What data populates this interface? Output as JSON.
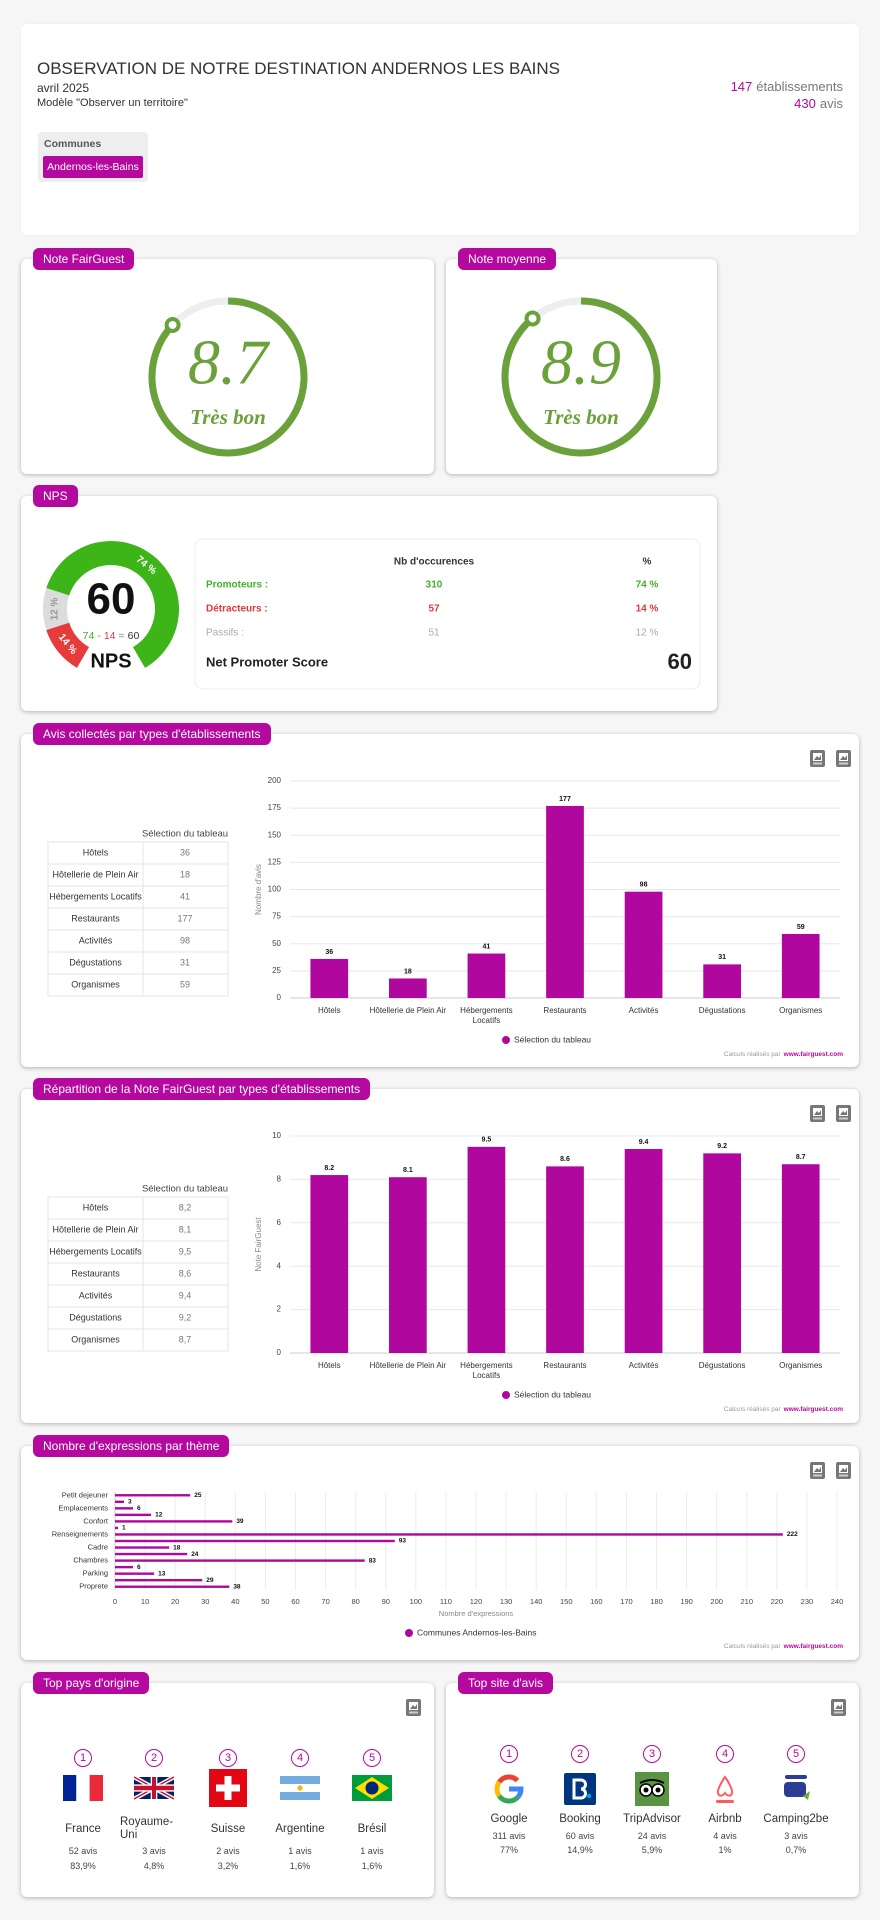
{
  "header": {
    "title": "OBSERVATION DE NOTRE DESTINATION ANDERNOS LES BAINS",
    "period": "avril 2025",
    "model": "Modèle \"Observer un territoire\"",
    "stats": [
      {
        "value": 147,
        "unit": "établissements"
      },
      {
        "value": 430,
        "unit": "avis"
      }
    ]
  },
  "filter": {
    "label": "Communes",
    "value": "Andernos-les-Bains"
  },
  "scores": [
    {
      "label": "Note FairGuest",
      "value": 8.7,
      "lim": [
        0,
        10
      ],
      "rating": "Très bon",
      "color": "#6aa13b"
    },
    {
      "label": "Note moyenne",
      "value": 8.9,
      "lim": [
        0,
        10
      ],
      "rating": "Très bon",
      "color": "#6aa13b"
    }
  ],
  "nps": {
    "label": "NPS",
    "score": 60,
    "formula": {
      "promoters": 74,
      "minus": "-",
      "detractors": 14,
      "equals": "=",
      "score": 60
    },
    "table": {
      "headers": [
        "Nb d'occurences",
        "%"
      ],
      "rows": [
        {
          "label": "Promoteurs :",
          "count": 310,
          "pct": 74,
          "pct_label": "74 %",
          "color": "#44b02a",
          "fill": "#3db418",
          "label_color": "#ffffff"
        },
        {
          "label": "Détracteurs :",
          "count": 57,
          "pct": 14,
          "pct_label": "14 %",
          "color": "#e0383d",
          "fill": "#e63b3b",
          "label_color": "#ffffff"
        },
        {
          "label": "Passifs :",
          "count": 51,
          "pct": 12,
          "pct_label": "12 %",
          "color": "#aaaaaa",
          "fill": "#dcdcdc",
          "label_color": "#999999"
        }
      ],
      "total_label": "Net Promoter Score"
    }
  },
  "chart_data": [
    {
      "type": "bar",
      "title": "Avis collectés par types d'établissements",
      "categories": [
        "Hôtels",
        "Hôtellerie de Plein Air",
        "Hébergements Locatifs",
        "Restaurants",
        "Activités",
        "Dégustations",
        "Organismes"
      ],
      "series": [
        {
          "name": "Sélection du tableau",
          "color": "#b0089f",
          "values": [
            36,
            18,
            41,
            177,
            98,
            31,
            59
          ]
        }
      ],
      "ylim": [
        0,
        200
      ],
      "yticks": [
        0,
        25,
        50,
        75,
        100,
        125,
        150,
        175,
        200
      ],
      "ylabel": "Nombre d'avis",
      "grid": true,
      "credit": "Calculs réalisés par",
      "credit_link": "www.fairguest.com"
    },
    {
      "type": "bar",
      "title": "Répartition de la Note FairGuest par types d'établissements",
      "categories": [
        "Hôtels",
        "Hôtellerie de Plein Air",
        "Hébergements Locatifs",
        "Restaurants",
        "Activités",
        "Dégustations",
        "Organismes"
      ],
      "series": [
        {
          "name": "Sélection du tableau",
          "color": "#b0089f",
          "values": [
            8.2,
            8.1,
            9.5,
            8.6,
            9.4,
            9.2,
            8.7
          ],
          "value_labels": [
            "8,2",
            "8,1",
            "9,5",
            "8,6",
            "9,4",
            "9,2",
            "8,7"
          ]
        }
      ],
      "ylim": [
        0,
        10
      ],
      "yticks": [
        0,
        2,
        4,
        6,
        8,
        10
      ],
      "ylabel": "Note FairGuest",
      "grid": true,
      "credit": "Calculs réalisés par",
      "credit_link": "www.fairguest.com"
    },
    {
      "type": "hbar",
      "title": "Nombre d'expressions par thème",
      "categories": [
        "Petit dejeuner",
        null,
        "Emplacements",
        null,
        "Confort",
        null,
        "Renseignements",
        null,
        "Cadre",
        null,
        "Chambres",
        null,
        "Parking",
        null,
        "Proprete"
      ],
      "series": [
        {
          "name": "Communes Andernos-les-Bains",
          "color": "#b0089f",
          "values": [
            25,
            3,
            6,
            12,
            39,
            1,
            222,
            93,
            18,
            24,
            83,
            6,
            13,
            29,
            38
          ]
        }
      ],
      "xlim": [
        0,
        240
      ],
      "xticks": [
        0,
        10,
        20,
        30,
        40,
        50,
        60,
        70,
        80,
        90,
        100,
        110,
        120,
        130,
        140,
        150,
        160,
        170,
        180,
        190,
        200,
        210,
        220,
        230,
        240
      ],
      "xlabel": "Nombre d'expressions",
      "grid": true,
      "credit": "Calculs réalisés par",
      "credit_link": "www.fairguest.com"
    }
  ],
  "countries": {
    "title": "Top pays d'origine",
    "items": [
      {
        "rank": 1,
        "name": "France",
        "count": 52,
        "count_label": "52 avis",
        "share": 83.9,
        "share_label": "83,9%"
      },
      {
        "rank": 2,
        "name": "Royaume-Uni",
        "count": 3,
        "count_label": "3 avis",
        "share": 4.8,
        "share_label": "4,8%"
      },
      {
        "rank": 3,
        "name": "Suisse",
        "count": 2,
        "count_label": "2 avis",
        "share": 3.2,
        "share_label": "3,2%"
      },
      {
        "rank": 4,
        "name": "Argentine",
        "count": 1,
        "count_label": "1 avis",
        "share": 1.6,
        "share_label": "1,6%"
      },
      {
        "rank": 5,
        "name": "Brésil",
        "count": 1,
        "count_label": "1 avis",
        "share": 1.6,
        "share_label": "1,6%"
      }
    ]
  },
  "sites": {
    "title": "Top site d'avis",
    "items": [
      {
        "rank": 1,
        "name": "Google",
        "count": 311,
        "count_label": "311 avis",
        "share": 77,
        "share_label": "77%"
      },
      {
        "rank": 2,
        "name": "Booking",
        "count": 60,
        "count_label": "60 avis",
        "share": 14.9,
        "share_label": "14,9%"
      },
      {
        "rank": 3,
        "name": "TripAdvisor",
        "count": 24,
        "count_label": "24 avis",
        "share": 5.9,
        "share_label": "5,9%"
      },
      {
        "rank": 4,
        "name": "Airbnb",
        "count": 4,
        "count_label": "4 avis",
        "share": 1,
        "share_label": "1%"
      },
      {
        "rank": 5,
        "name": "Camping2be",
        "count": 3,
        "count_label": "3 avis",
        "share": 0.7,
        "share_label": "0,7%"
      }
    ]
  }
}
